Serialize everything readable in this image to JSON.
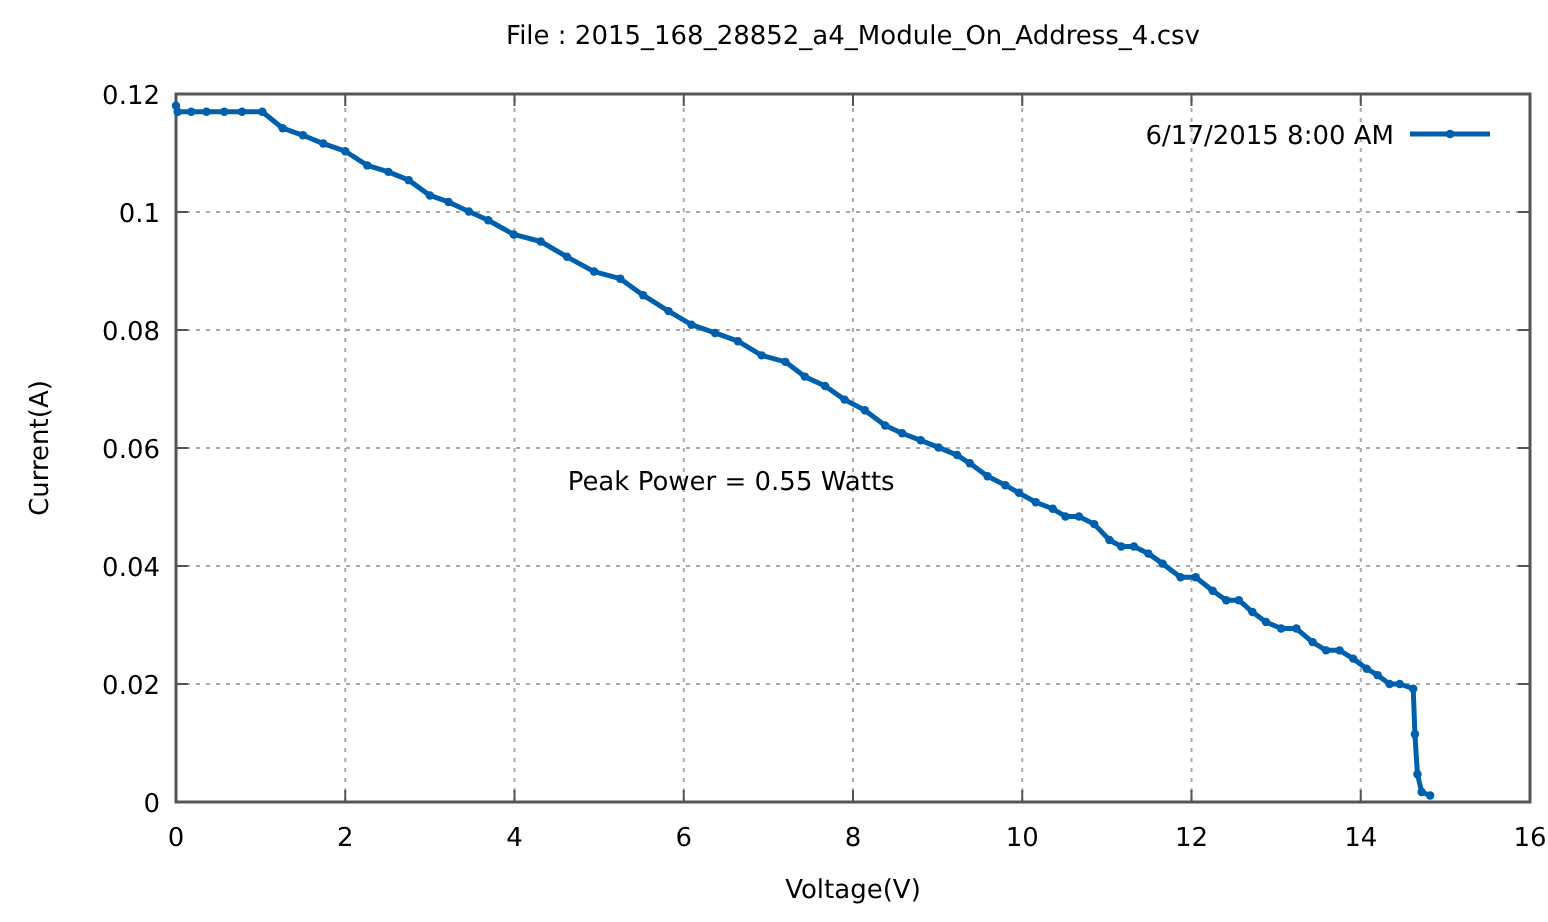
{
  "chart_data": {
    "type": "line",
    "title": "File : 2015_168_28852_a4_Module_On_Address_4.csv",
    "xlabel": "Voltage(V)",
    "ylabel": "Current(A)",
    "x": [
      0,
      0.02,
      0.18,
      0.36,
      0.57,
      0.78,
      1.02,
      1.26,
      1.5,
      1.74,
      2.0,
      2.26,
      2.51,
      2.75,
      3.0,
      3.22,
      3.46,
      3.69,
      3.99,
      4.31,
      4.62,
      4.94,
      5.25,
      5.52,
      5.82,
      6.09,
      6.37,
      6.64,
      6.92,
      7.2,
      7.43,
      7.67,
      7.9,
      8.14,
      8.38,
      8.58,
      8.8,
      9.01,
      9.23,
      9.38,
      9.59,
      9.8,
      9.96,
      10.16,
      10.36,
      10.51,
      10.67,
      10.85,
      11.03,
      11.17,
      11.32,
      11.49,
      11.66,
      11.87,
      12.05,
      12.25,
      12.41,
      12.56,
      12.72,
      12.88,
      13.06,
      13.24,
      13.43,
      13.59,
      13.75,
      13.91,
      14.07,
      14.2,
      14.34,
      14.46,
      14.62,
      14.64,
      14.67,
      14.72,
      14.82
    ],
    "series": [
      {
        "name": "6/17/2015  8:00 AM",
        "color": "#0060ad",
        "values": [
          0.118,
          0.117,
          0.117,
          0.117,
          0.117,
          0.117,
          0.117,
          0.1142,
          0.113,
          0.1116,
          0.1103,
          0.1079,
          0.1068,
          0.1054,
          0.1028,
          0.1017,
          0.1001,
          0.0986,
          0.0962,
          0.095,
          0.0924,
          0.0899,
          0.0887,
          0.0859,
          0.0832,
          0.0809,
          0.0795,
          0.0781,
          0.0757,
          0.0746,
          0.0721,
          0.0705,
          0.0682,
          0.0664,
          0.0638,
          0.0625,
          0.0613,
          0.0601,
          0.0588,
          0.0574,
          0.0552,
          0.0537,
          0.0524,
          0.0508,
          0.0497,
          0.0484,
          0.0484,
          0.0471,
          0.0444,
          0.0433,
          0.0433,
          0.0421,
          0.0404,
          0.0381,
          0.0381,
          0.0358,
          0.0342,
          0.0342,
          0.0322,
          0.0305,
          0.0294,
          0.0294,
          0.0271,
          0.0257,
          0.0257,
          0.0243,
          0.0226,
          0.0215,
          0.02,
          0.02,
          0.0192,
          0.0115,
          0.0047,
          0.0017,
          0.0011
        ]
      }
    ],
    "xlim": [
      0,
      16
    ],
    "xticks": [
      0,
      2,
      4,
      6,
      8,
      10,
      12,
      14,
      16
    ],
    "ylim": [
      0,
      0.12
    ],
    "yticks": [
      0,
      0.02,
      0.04,
      0.06,
      0.08,
      0.1,
      0.12
    ],
    "grid": true,
    "legend": "top right",
    "marker": "circle",
    "line_style": "solid",
    "annotations": [
      "Peak Power = 0.55 Watts"
    ]
  }
}
